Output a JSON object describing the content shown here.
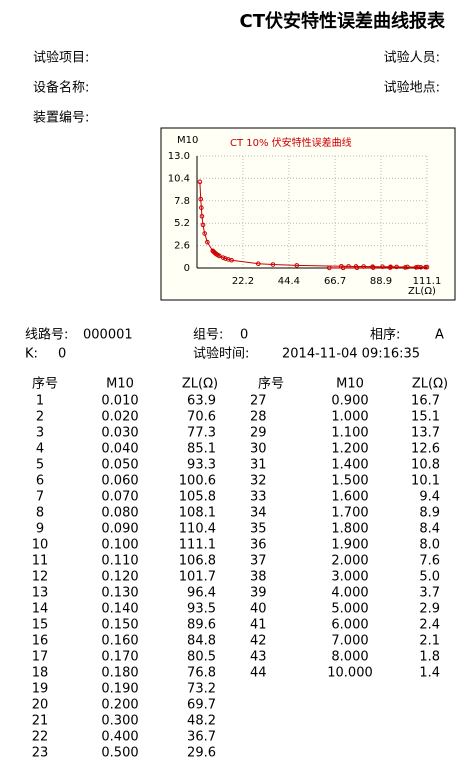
{
  "header": {
    "title": "CT伏安特性误差曲线报表"
  },
  "fields": {
    "item": "试验项目:",
    "person": "试验人员:",
    "device": "设备名称:",
    "place": "试验地点:",
    "number": "装置编号:"
  },
  "chart_data": {
    "type": "scatter",
    "title": "CT 10% 伏安特性误差曲线",
    "y_label": "M10",
    "x_label": "ZL(Ω)",
    "color": "#cc0000",
    "grid": true,
    "xlim": [
      0,
      111.1
    ],
    "ylim": [
      0,
      13
    ],
    "xticks": [
      22.2,
      44.4,
      66.7,
      88.9,
      111.1
    ],
    "yticks": [
      0,
      2.6,
      5.2,
      7.8,
      10.4,
      {
        "value": 13,
        "label": "13.0"
      }
    ]
  },
  "info": {
    "line_label": "线路号:",
    "line": "000001",
    "group_label": "组号:",
    "group": "0",
    "phase_label": "相序:",
    "phase": "A",
    "k_label": "K:",
    "k": "0",
    "time_label": "试验时间:",
    "time": "2014-11-04 09:16:35"
  },
  "table": {
    "headers": [
      "序号",
      "M10",
      "ZL(Ω)"
    ],
    "left": [
      [
        "1",
        "0.010",
        "63.9"
      ],
      [
        "2",
        "0.020",
        "70.6"
      ],
      [
        "3",
        "0.030",
        "77.3"
      ],
      [
        "4",
        "0.040",
        "85.1"
      ],
      [
        "5",
        "0.050",
        "93.3"
      ],
      [
        "6",
        "0.060",
        "100.6"
      ],
      [
        "7",
        "0.070",
        "105.8"
      ],
      [
        "8",
        "0.080",
        "108.1"
      ],
      [
        "9",
        "0.090",
        "110.4"
      ],
      [
        "10",
        "0.100",
        "111.1"
      ],
      [
        "11",
        "0.110",
        "106.8"
      ],
      [
        "12",
        "0.120",
        "101.7"
      ],
      [
        "13",
        "0.130",
        "96.4"
      ],
      [
        "14",
        "0.140",
        "93.5"
      ],
      [
        "15",
        "0.150",
        "89.6"
      ],
      [
        "16",
        "0.160",
        "84.8"
      ],
      [
        "17",
        "0.170",
        "80.5"
      ],
      [
        "18",
        "0.180",
        "76.8"
      ],
      [
        "19",
        "0.190",
        "73.2"
      ],
      [
        "20",
        "0.200",
        "69.7"
      ],
      [
        "21",
        "0.300",
        "48.2"
      ],
      [
        "22",
        "0.400",
        "36.7"
      ],
      [
        "23",
        "0.500",
        "29.6"
      ]
    ],
    "right": [
      [
        "27",
        "0.900",
        "16.7"
      ],
      [
        "28",
        "1.000",
        "15.1"
      ],
      [
        "29",
        "1.100",
        "13.7"
      ],
      [
        "30",
        "1.200",
        "12.6"
      ],
      [
        "31",
        "1.400",
        "10.8"
      ],
      [
        "32",
        "1.500",
        "10.1"
      ],
      [
        "33",
        "1.600",
        "9.4"
      ],
      [
        "34",
        "1.700",
        "8.9"
      ],
      [
        "35",
        "1.800",
        "8.4"
      ],
      [
        "36",
        "1.900",
        "8.0"
      ],
      [
        "37",
        "2.000",
        "7.6"
      ],
      [
        "38",
        "3.000",
        "5.0"
      ],
      [
        "39",
        "4.000",
        "3.7"
      ],
      [
        "40",
        "5.000",
        "2.9"
      ],
      [
        "41",
        "6.000",
        "2.4"
      ],
      [
        "42",
        "7.000",
        "2.1"
      ],
      [
        "43",
        "8.000",
        "1.8"
      ],
      [
        "44",
        "10.000",
        "1.4"
      ]
    ]
  }
}
